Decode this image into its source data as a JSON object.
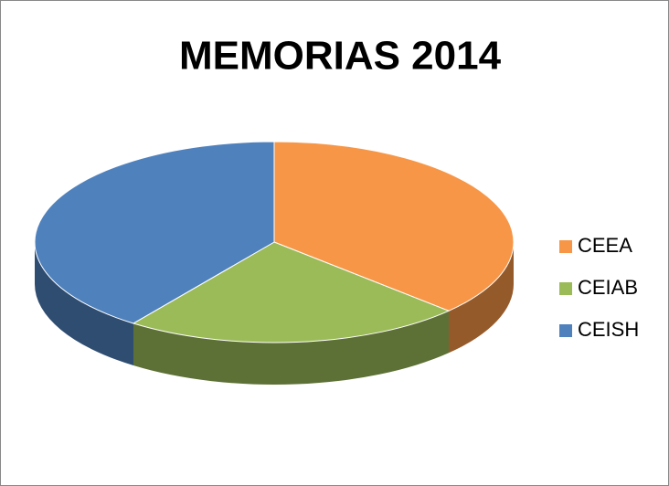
{
  "chart_data": {
    "type": "pie",
    "title": "MEMORIAS 2014",
    "categories": [
      "CEEA",
      "CEIAB",
      "CEISH"
    ],
    "values": [
      37,
      23,
      40
    ],
    "colors": [
      "#f79646",
      "#9bbb59",
      "#4f81bd"
    ],
    "legend": "right"
  }
}
